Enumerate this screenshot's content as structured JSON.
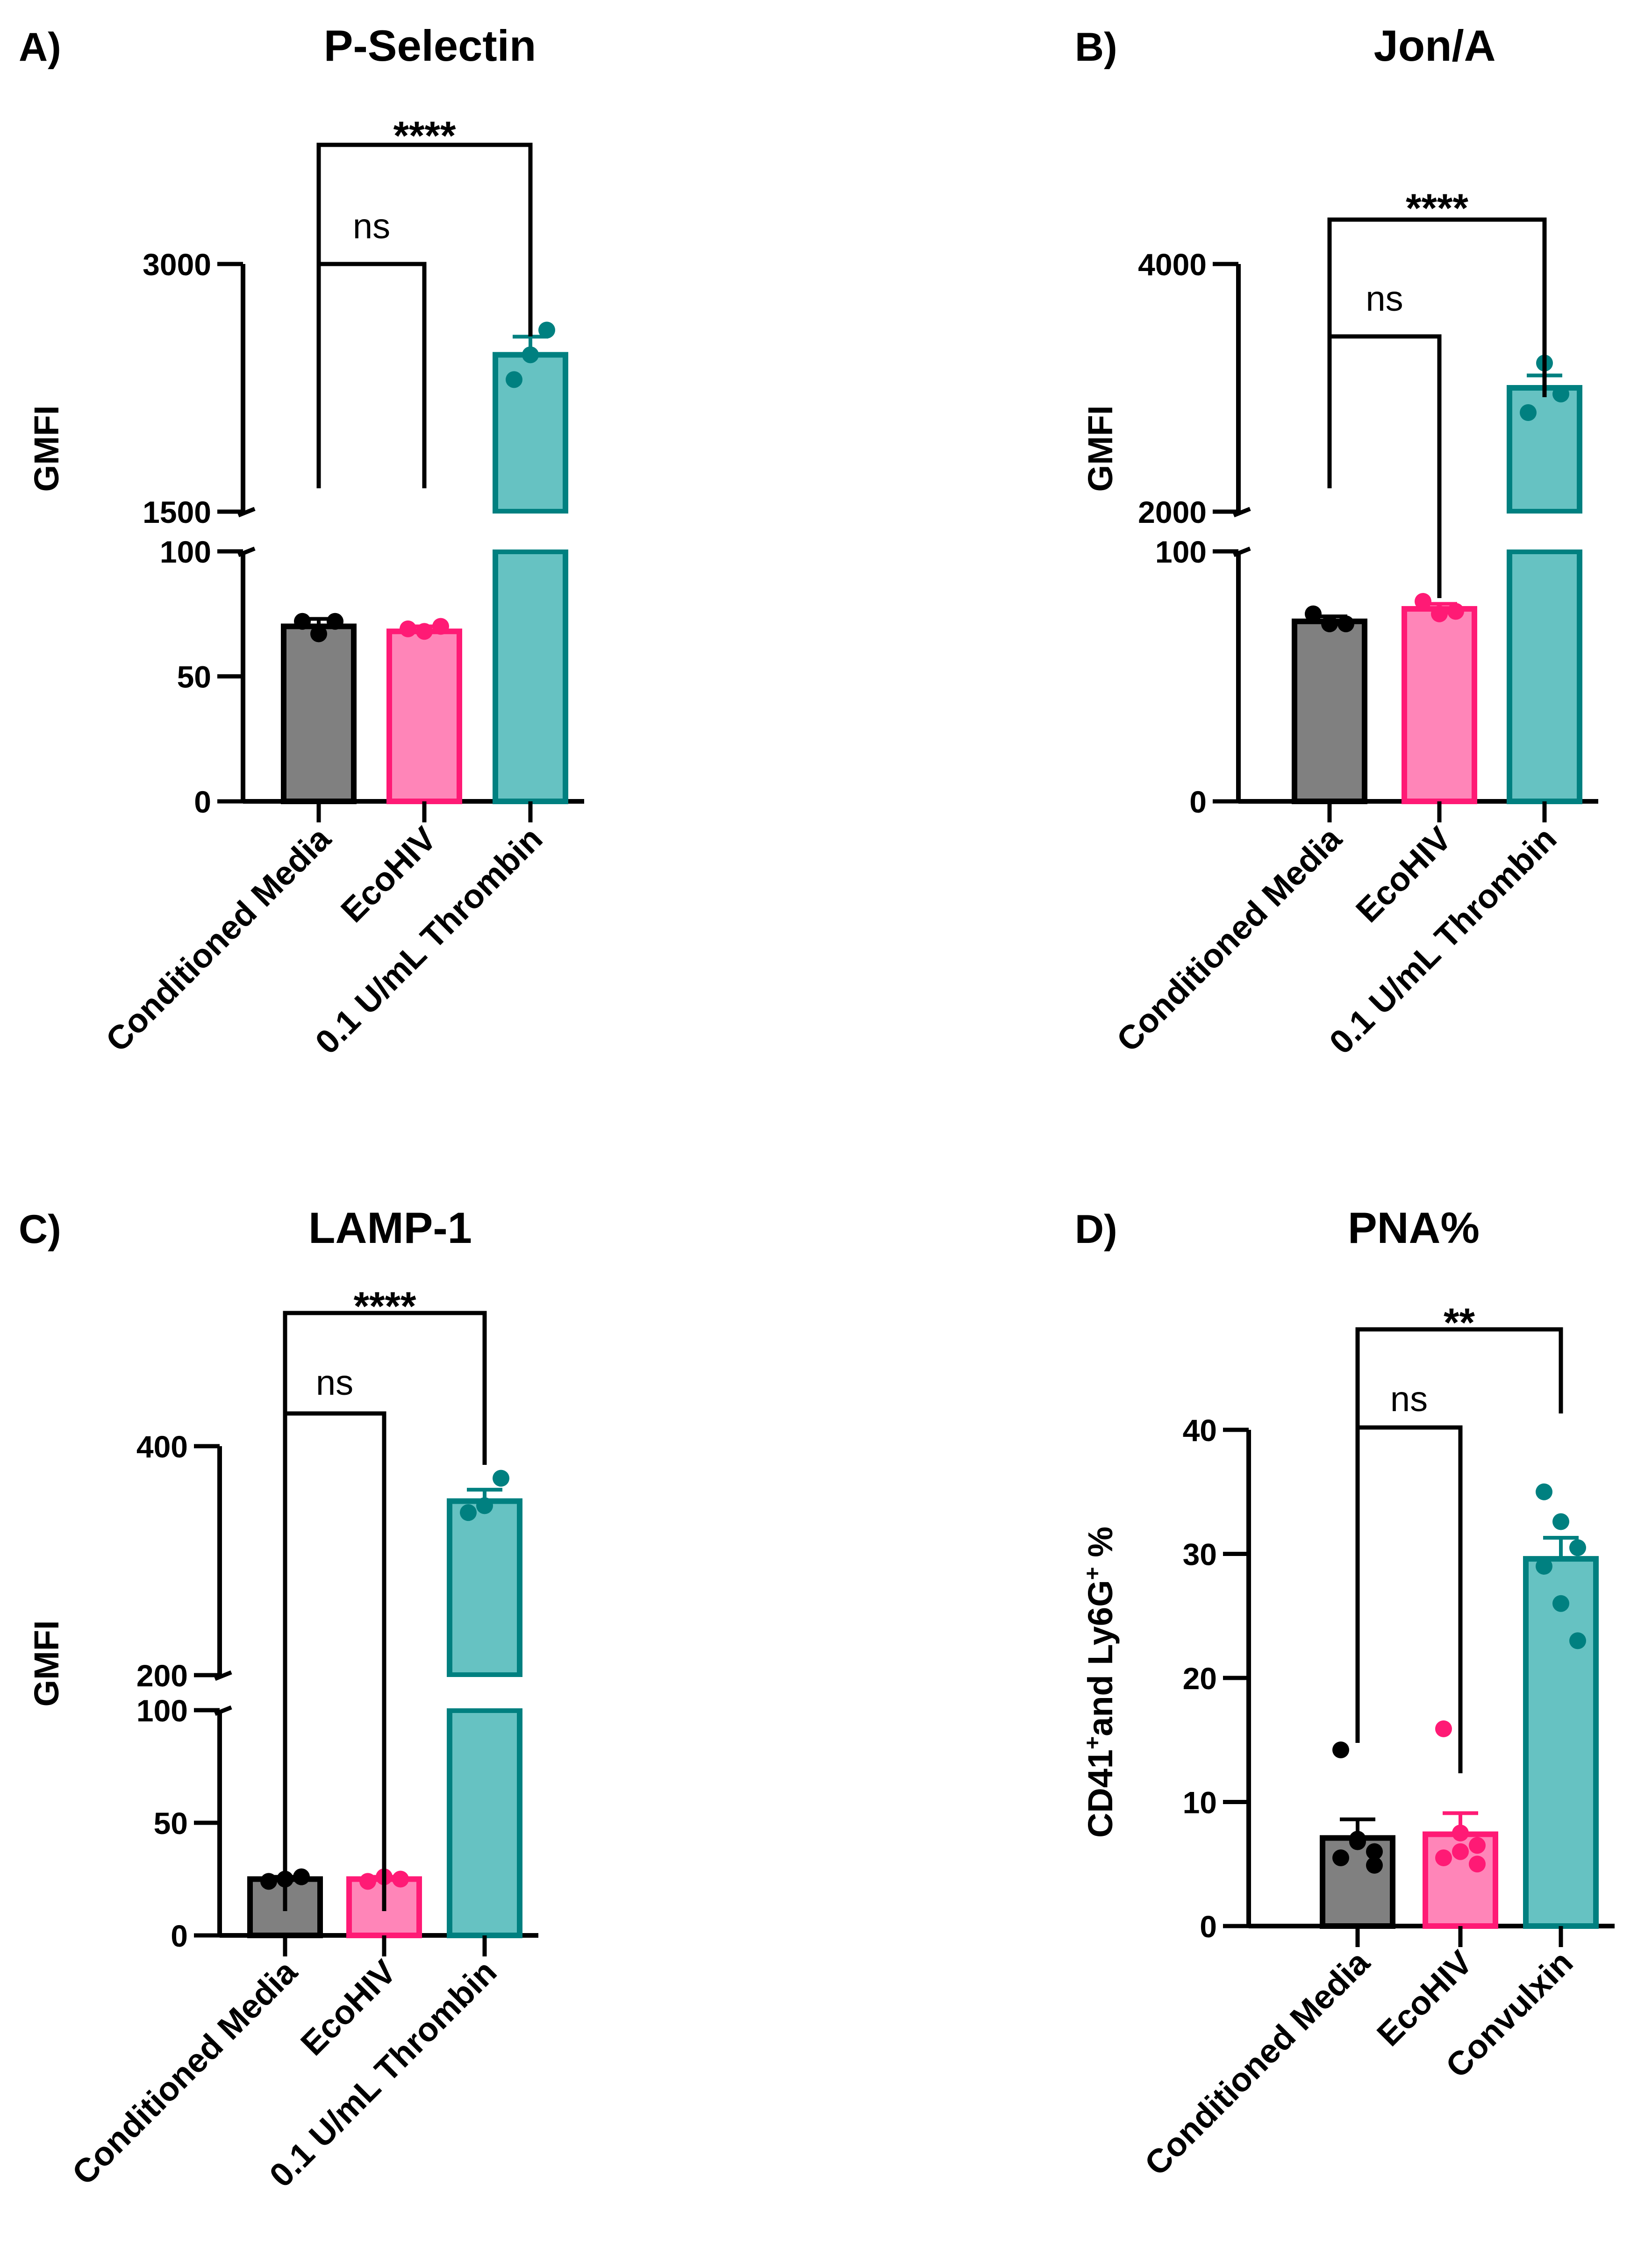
{
  "panels": [
    {
      "letter": "A)",
      "title": "P-Selectin",
      "ylabel": "GMFI",
      "ylabel_parts": [],
      "categories": [
        "Conditioned Media",
        "EcoHIV",
        "0.1 U/mL Thrombin"
      ],
      "lower_ticks": [
        "0",
        "50",
        "100"
      ],
      "upper_ticks": [
        "1500",
        "3000"
      ],
      "significance": [
        {
          "label": "ns",
          "from": 0,
          "to": 1
        },
        {
          "label": "****",
          "from": 0,
          "to": 2
        }
      ]
    },
    {
      "letter": "B)",
      "title": "Jon/A",
      "ylabel": "GMFI",
      "ylabel_parts": [],
      "categories": [
        "Conditioned Media",
        "EcoHIV",
        "0.1 U/mL Thrombin"
      ],
      "lower_ticks": [
        "0",
        "100"
      ],
      "upper_ticks": [
        "2000",
        "4000"
      ],
      "significance": [
        {
          "label": "ns",
          "from": 0,
          "to": 1
        },
        {
          "label": "****",
          "from": 0,
          "to": 2
        }
      ]
    },
    {
      "letter": "C)",
      "title": "LAMP-1",
      "ylabel": "GMFI",
      "ylabel_parts": [],
      "categories": [
        "Conditioned Media",
        "EcoHIV",
        "0.1 U/mL Thrombin"
      ],
      "lower_ticks": [
        "0",
        "50",
        "100"
      ],
      "upper_ticks": [
        "200",
        "400"
      ],
      "significance": [
        {
          "label": "ns",
          "from": 0,
          "to": 1
        },
        {
          "label": "****",
          "from": 0,
          "to": 2
        }
      ]
    },
    {
      "letter": "D)",
      "title": "PNA%",
      "ylabel": "",
      "ylabel_parts": [
        {
          "text": "CD41",
          "sup": false
        },
        {
          "text": "+",
          "sup": true
        },
        {
          "text": "and Ly6G",
          "sup": false
        },
        {
          "text": "+",
          "sup": true
        },
        {
          "text": " %",
          "sup": false
        }
      ],
      "categories": [
        "Conditioned Media",
        "EcoHIV",
        "Convulxin"
      ],
      "lower_ticks": [
        "0",
        "10",
        "20",
        "30",
        "40"
      ],
      "upper_ticks": [],
      "significance": [
        {
          "label": "ns",
          "from": 0,
          "to": 1
        },
        {
          "label": "**",
          "from": 0,
          "to": 2
        }
      ]
    }
  ],
  "colors": {
    "conditioned_media_fill": "#808080",
    "conditioned_media_edge": "#000000",
    "ecohiv_fill": "#ff85b8",
    "ecohiv_edge": "#ff1a75",
    "thrombin_fill": "#66c2c2",
    "thrombin_edge": "#008080"
  },
  "chart_data": [
    {
      "type": "bar",
      "title": "P-Selectin",
      "ylabel": "GMFI",
      "axis_break": {
        "lower_range": [
          0,
          100
        ],
        "upper_range": [
          1500,
          3000
        ]
      },
      "categories": [
        "Conditioned Media",
        "EcoHIV",
        "0.1 U/mL Thrombin"
      ],
      "values": [
        70,
        68,
        2450
      ],
      "error": [
        3,
        2,
        110
      ],
      "points": [
        [
          72,
          67,
          72
        ],
        [
          69,
          68,
          70
        ],
        [
          2300,
          2450,
          2600
        ]
      ],
      "significance": [
        {
          "groups": [
            "Conditioned Media",
            "EcoHIV"
          ],
          "label": "ns"
        },
        {
          "groups": [
            "Conditioned Media",
            "0.1 U/mL Thrombin"
          ],
          "label": "****"
        }
      ]
    },
    {
      "type": "bar",
      "title": "Jon/A",
      "ylabel": "GMFI",
      "axis_break": {
        "lower_range": [
          0,
          100
        ],
        "upper_range": [
          2000,
          4000
        ]
      },
      "categories": [
        "Conditioned Media",
        "EcoHIV",
        "0.1 U/mL Thrombin"
      ],
      "values": [
        72,
        77,
        3000
      ],
      "error": [
        2,
        2,
        100
      ],
      "points": [
        [
          75,
          71,
          71
        ],
        [
          80,
          75,
          76
        ],
        [
          2800,
          3200,
          2950
        ]
      ],
      "significance": [
        {
          "groups": [
            "Conditioned Media",
            "EcoHIV"
          ],
          "label": "ns"
        },
        {
          "groups": [
            "Conditioned Media",
            "0.1 U/mL Thrombin"
          ],
          "label": "****"
        }
      ]
    },
    {
      "type": "bar",
      "title": "LAMP-1",
      "ylabel": "GMFI",
      "axis_break": {
        "lower_range": [
          0,
          100
        ],
        "upper_range": [
          200,
          400
        ]
      },
      "categories": [
        "Conditioned Media",
        "EcoHIV",
        "0.1 U/mL Thrombin"
      ],
      "values": [
        25,
        25,
        352
      ],
      "error": [
        1,
        1,
        10
      ],
      "points": [
        [
          24,
          25,
          26
        ],
        [
          24,
          26,
          25
        ],
        [
          342,
          348,
          372
        ]
      ],
      "significance": [
        {
          "groups": [
            "Conditioned Media",
            "EcoHIV"
          ],
          "label": "ns"
        },
        {
          "groups": [
            "Conditioned Media",
            "0.1 U/mL Thrombin"
          ],
          "label": "****"
        }
      ]
    },
    {
      "type": "bar",
      "title": "PNA%",
      "ylabel": "CD41+and Ly6G+ %",
      "ylim": [
        0,
        40
      ],
      "categories": [
        "Conditioned Media",
        "EcoHIV",
        "Convulxin"
      ],
      "values": [
        7.1,
        7.4,
        29.6
      ],
      "error": [
        1.5,
        1.7,
        1.7
      ],
      "points": [
        [
          14.2,
          6.8,
          6.0,
          5.5,
          7.0,
          4.9
        ],
        [
          15.9,
          7.5,
          6.5,
          5.5,
          6.0,
          5.0
        ],
        [
          35.0,
          32.6,
          30.5,
          29.0,
          26.0,
          23.0
        ]
      ],
      "significance": [
        {
          "groups": [
            "Conditioned Media",
            "EcoHIV"
          ],
          "label": "ns"
        },
        {
          "groups": [
            "Conditioned Media",
            "Convulxin"
          ],
          "label": "**"
        }
      ]
    }
  ]
}
